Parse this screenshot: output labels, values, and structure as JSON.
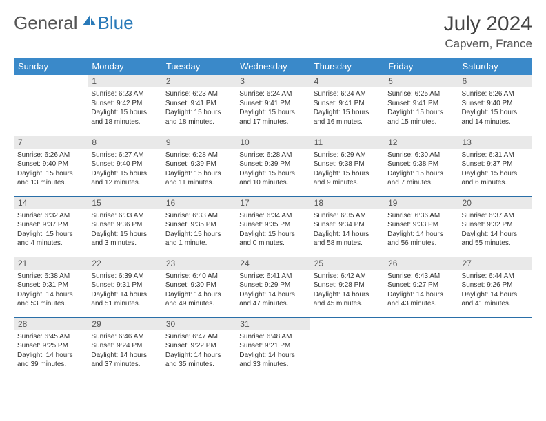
{
  "logo": {
    "text1": "General",
    "text2": "Blue"
  },
  "title": "July 2024",
  "location": "Capvern, France",
  "weekday_headers": [
    "Sunday",
    "Monday",
    "Tuesday",
    "Wednesday",
    "Thursday",
    "Friday",
    "Saturday"
  ],
  "colors": {
    "header_bg": "#3a89c9",
    "row_divider": "#2a6fa8",
    "daynum_bg": "#e9e9e9",
    "text": "#333333",
    "logo_gray": "#555555",
    "logo_blue": "#2a7ab9"
  },
  "first_weekday_index": 1,
  "days": [
    {
      "n": 1,
      "sunrise": "6:23 AM",
      "sunset": "9:42 PM",
      "daylight": "15 hours and 18 minutes."
    },
    {
      "n": 2,
      "sunrise": "6:23 AM",
      "sunset": "9:41 PM",
      "daylight": "15 hours and 18 minutes."
    },
    {
      "n": 3,
      "sunrise": "6:24 AM",
      "sunset": "9:41 PM",
      "daylight": "15 hours and 17 minutes."
    },
    {
      "n": 4,
      "sunrise": "6:24 AM",
      "sunset": "9:41 PM",
      "daylight": "15 hours and 16 minutes."
    },
    {
      "n": 5,
      "sunrise": "6:25 AM",
      "sunset": "9:41 PM",
      "daylight": "15 hours and 15 minutes."
    },
    {
      "n": 6,
      "sunrise": "6:26 AM",
      "sunset": "9:40 PM",
      "daylight": "15 hours and 14 minutes."
    },
    {
      "n": 7,
      "sunrise": "6:26 AM",
      "sunset": "9:40 PM",
      "daylight": "15 hours and 13 minutes."
    },
    {
      "n": 8,
      "sunrise": "6:27 AM",
      "sunset": "9:40 PM",
      "daylight": "15 hours and 12 minutes."
    },
    {
      "n": 9,
      "sunrise": "6:28 AM",
      "sunset": "9:39 PM",
      "daylight": "15 hours and 11 minutes."
    },
    {
      "n": 10,
      "sunrise": "6:28 AM",
      "sunset": "9:39 PM",
      "daylight": "15 hours and 10 minutes."
    },
    {
      "n": 11,
      "sunrise": "6:29 AM",
      "sunset": "9:38 PM",
      "daylight": "15 hours and 9 minutes."
    },
    {
      "n": 12,
      "sunrise": "6:30 AM",
      "sunset": "9:38 PM",
      "daylight": "15 hours and 7 minutes."
    },
    {
      "n": 13,
      "sunrise": "6:31 AM",
      "sunset": "9:37 PM",
      "daylight": "15 hours and 6 minutes."
    },
    {
      "n": 14,
      "sunrise": "6:32 AM",
      "sunset": "9:37 PM",
      "daylight": "15 hours and 4 minutes."
    },
    {
      "n": 15,
      "sunrise": "6:33 AM",
      "sunset": "9:36 PM",
      "daylight": "15 hours and 3 minutes."
    },
    {
      "n": 16,
      "sunrise": "6:33 AM",
      "sunset": "9:35 PM",
      "daylight": "15 hours and 1 minute."
    },
    {
      "n": 17,
      "sunrise": "6:34 AM",
      "sunset": "9:35 PM",
      "daylight": "15 hours and 0 minutes."
    },
    {
      "n": 18,
      "sunrise": "6:35 AM",
      "sunset": "9:34 PM",
      "daylight": "14 hours and 58 minutes."
    },
    {
      "n": 19,
      "sunrise": "6:36 AM",
      "sunset": "9:33 PM",
      "daylight": "14 hours and 56 minutes."
    },
    {
      "n": 20,
      "sunrise": "6:37 AM",
      "sunset": "9:32 PM",
      "daylight": "14 hours and 55 minutes."
    },
    {
      "n": 21,
      "sunrise": "6:38 AM",
      "sunset": "9:31 PM",
      "daylight": "14 hours and 53 minutes."
    },
    {
      "n": 22,
      "sunrise": "6:39 AM",
      "sunset": "9:31 PM",
      "daylight": "14 hours and 51 minutes."
    },
    {
      "n": 23,
      "sunrise": "6:40 AM",
      "sunset": "9:30 PM",
      "daylight": "14 hours and 49 minutes."
    },
    {
      "n": 24,
      "sunrise": "6:41 AM",
      "sunset": "9:29 PM",
      "daylight": "14 hours and 47 minutes."
    },
    {
      "n": 25,
      "sunrise": "6:42 AM",
      "sunset": "9:28 PM",
      "daylight": "14 hours and 45 minutes."
    },
    {
      "n": 26,
      "sunrise": "6:43 AM",
      "sunset": "9:27 PM",
      "daylight": "14 hours and 43 minutes."
    },
    {
      "n": 27,
      "sunrise": "6:44 AM",
      "sunset": "9:26 PM",
      "daylight": "14 hours and 41 minutes."
    },
    {
      "n": 28,
      "sunrise": "6:45 AM",
      "sunset": "9:25 PM",
      "daylight": "14 hours and 39 minutes."
    },
    {
      "n": 29,
      "sunrise": "6:46 AM",
      "sunset": "9:24 PM",
      "daylight": "14 hours and 37 minutes."
    },
    {
      "n": 30,
      "sunrise": "6:47 AM",
      "sunset": "9:22 PM",
      "daylight": "14 hours and 35 minutes."
    },
    {
      "n": 31,
      "sunrise": "6:48 AM",
      "sunset": "9:21 PM",
      "daylight": "14 hours and 33 minutes."
    }
  ],
  "labels": {
    "sunrise": "Sunrise:",
    "sunset": "Sunset:",
    "daylight": "Daylight:"
  }
}
